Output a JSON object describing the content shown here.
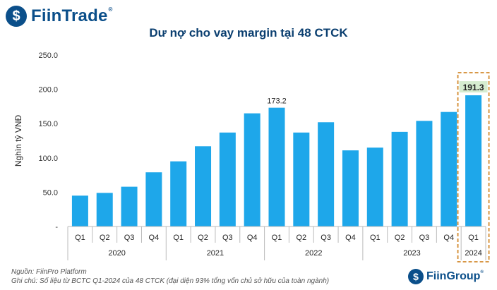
{
  "brand": {
    "logo_text": "FiinTrade",
    "footer_logo_text": "FiinGroup",
    "color": "#0b4f8a"
  },
  "colors": {
    "bar": "#1ea7ea",
    "highlight_fill": "#d6ecd0",
    "highlight_border": "#d38a2e"
  },
  "chart_data": {
    "type": "bar",
    "title": "Dư nợ cho vay margin tại 48 CTCK",
    "ylabel": "Nghìn tỷ VNĐ",
    "xlabel": "",
    "ylim": [
      0,
      250
    ],
    "y_ticks": [
      "-",
      "50.0",
      "100.0",
      "150.0",
      "200.0",
      "250.0"
    ],
    "grid": false,
    "categories": [
      "Q1",
      "Q2",
      "Q3",
      "Q4",
      "Q1",
      "Q2",
      "Q3",
      "Q4",
      "Q1",
      "Q2",
      "Q3",
      "Q4",
      "Q1",
      "Q2",
      "Q3",
      "Q4",
      "Q1"
    ],
    "years": [
      "2020",
      "2021",
      "2022",
      "2023",
      "2024"
    ],
    "values": [
      45,
      49,
      58,
      79,
      95,
      117,
      137,
      165,
      173.2,
      137,
      152,
      111,
      115,
      138,
      154,
      167,
      191.3
    ],
    "data_labels": [
      {
        "index": 8,
        "text": "173.2"
      },
      {
        "index": 16,
        "text": "191.3",
        "highlighted": true
      }
    ]
  },
  "footnote": {
    "source": "Nguồn: FiinPro Platform",
    "note": "Ghi chú: Số liệu từ BCTC Q1-2024 của 48 CTCK (đại diện 93% tổng vốn chủ sở hữu của toàn ngành)"
  }
}
